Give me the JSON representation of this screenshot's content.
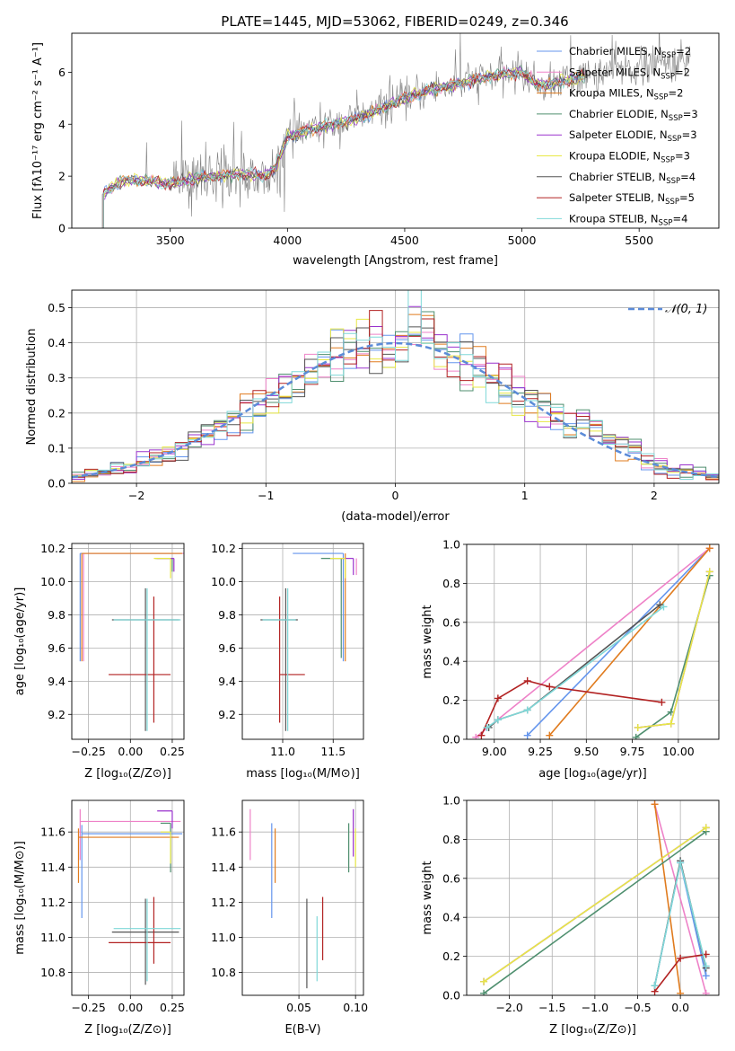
{
  "figure_title": "PLATE=1445, MJD=53062, FIBERID=0249, z=0.346",
  "colors": {
    "chabrier_miles": "#6495ed",
    "salpeter_miles": "#ee82c8",
    "kroupa_miles": "#e07b1e",
    "chabrier_elodie": "#4f8f6f",
    "salpeter_elodie": "#9a32cd",
    "kroupa_elodie": "#e8e845",
    "chabrier_stelib": "#555555",
    "salpeter_stelib": "#b22222",
    "kroupa_stelib": "#7fd8d8",
    "gaussian": "#5b8bd8",
    "data": "#808080"
  },
  "legend_spectrum": [
    {
      "key": "chabrier_miles",
      "label": "Chabrier MILES, N",
      "sub": "SSP",
      "tail": "=2"
    },
    {
      "key": "salpeter_miles",
      "label": "Salpeter MILES, N",
      "sub": "SSP",
      "tail": "=2"
    },
    {
      "key": "kroupa_miles",
      "label": "Kroupa MILES, N",
      "sub": "SSP",
      "tail": "=2"
    },
    {
      "key": "chabrier_elodie",
      "label": "Chabrier ELODIE, N",
      "sub": "SSP",
      "tail": "=3"
    },
    {
      "key": "salpeter_elodie",
      "label": "Salpeter ELODIE, N",
      "sub": "SSP",
      "tail": "=3"
    },
    {
      "key": "kroupa_elodie",
      "label": "Kroupa ELODIE, N",
      "sub": "SSP",
      "tail": "=3"
    },
    {
      "key": "chabrier_stelib",
      "label": "Chabrier STELIB, N",
      "sub": "SSP",
      "tail": "=4"
    },
    {
      "key": "salpeter_stelib",
      "label": "Salpeter STELIB, N",
      "sub": "SSP",
      "tail": "=5"
    },
    {
      "key": "kroupa_stelib",
      "label": "Kroupa STELIB, N",
      "sub": "SSP",
      "tail": "=4"
    }
  ],
  "chart_data": [
    {
      "id": "spectrum",
      "type": "line",
      "xlabel": "wavelength [Angstrom, rest frame]",
      "ylabel": "Flux [fλ10⁻¹⁷ erg cm⁻² s⁻¹ A⁻¹]",
      "xlim": [
        3080,
        5840
      ],
      "ylim": [
        0,
        7.5
      ],
      "xticks": [
        3500,
        4000,
        4500,
        5000,
        5500
      ],
      "yticks": [
        0,
        2,
        4,
        6
      ],
      "continuum": [
        [
          3210,
          1.3
        ],
        [
          3300,
          1.85
        ],
        [
          3400,
          1.8
        ],
        [
          3500,
          1.7
        ],
        [
          3600,
          1.9
        ],
        [
          3700,
          2.0
        ],
        [
          3800,
          2.1
        ],
        [
          3900,
          2.0
        ],
        [
          3950,
          2.3
        ],
        [
          4000,
          3.5
        ],
        [
          4100,
          3.8
        ],
        [
          4200,
          4.0
        ],
        [
          4300,
          4.2
        ],
        [
          4400,
          4.6
        ],
        [
          4500,
          5.0
        ],
        [
          4600,
          5.3
        ],
        [
          4700,
          5.5
        ],
        [
          4800,
          5.7
        ],
        [
          4900,
          5.9
        ],
        [
          5000,
          6.0
        ],
        [
          5050,
          5.6
        ],
        [
          5100,
          5.5
        ],
        [
          5200,
          5.7
        ],
        [
          5300,
          5.9
        ],
        [
          5400,
          6.1
        ],
        [
          5500,
          6.2
        ],
        [
          5600,
          6.3
        ],
        [
          5700,
          6.4
        ]
      ],
      "model_end": 5270
    },
    {
      "id": "residuals",
      "type": "histogram",
      "xlabel": "(data-model)/error",
      "ylabel": "Normed distribution",
      "xlim": [
        -2.5,
        2.5
      ],
      "ylim": [
        0,
        0.55
      ],
      "xticks": [
        -2,
        -1,
        0,
        1,
        2
      ],
      "yticks": [
        0,
        0.1,
        0.2,
        0.3,
        0.4,
        0.5
      ],
      "bin_width": 0.1,
      "legend": "𝒩(0, 1)"
    },
    {
      "id": "age_vs_z",
      "type": "errorbar",
      "xlabel": "Z [log₁₀(Z/Z⊙)]",
      "ylabel": "age  [log₁₀(age/yr)]",
      "xlim": [
        -0.35,
        0.32
      ],
      "ylim": [
        9.05,
        10.23
      ],
      "xticks": [
        -0.25,
        0.0,
        0.25
      ],
      "yticks": [
        9.2,
        9.4,
        9.6,
        9.8,
        10.0,
        10.2
      ],
      "points": [
        {
          "c": "chabrier_miles",
          "x": -0.3,
          "y": 10.17,
          "xerr": [
            0.0,
            0.6
          ],
          "yerr": [
            0.65,
            0.0
          ]
        },
        {
          "c": "salpeter_miles",
          "x": -0.28,
          "y": 10.17,
          "xerr": [
            0.0,
            0.6
          ],
          "yerr": [
            0.65,
            0.0
          ]
        },
        {
          "c": "kroupa_miles",
          "x": -0.29,
          "y": 10.17,
          "xerr": [
            0.0,
            0.6
          ],
          "yerr": [
            0.65,
            0.0
          ]
        },
        {
          "c": "chabrier_elodie",
          "x": 0.25,
          "y": 10.14,
          "xerr": [
            0.1,
            0.0
          ],
          "yerr": [
            0.08,
            0.0
          ]
        },
        {
          "c": "salpeter_elodie",
          "x": 0.26,
          "y": 10.14,
          "xerr": [
            0.1,
            0.0
          ],
          "yerr": [
            0.08,
            0.0
          ]
        },
        {
          "c": "kroupa_elodie",
          "x": 0.24,
          "y": 10.14,
          "xerr": [
            0.1,
            0.0
          ],
          "yerr": [
            0.12,
            0.0
          ]
        },
        {
          "c": "chabrier_stelib",
          "x": 0.09,
          "y": 9.77,
          "xerr": [
            0.2,
            0.2
          ],
          "yerr": [
            0.67,
            0.19
          ]
        },
        {
          "c": "salpeter_stelib",
          "x": 0.14,
          "y": 9.44,
          "xerr": [
            0.27,
            0.1
          ],
          "yerr": [
            0.29,
            0.47
          ]
        },
        {
          "c": "kroupa_stelib",
          "x": 0.1,
          "y": 9.77,
          "xerr": [
            0.2,
            0.2
          ],
          "yerr": [
            0.67,
            0.19
          ]
        }
      ]
    },
    {
      "id": "age_vs_mass",
      "type": "errorbar",
      "xlabel": "mass [log₁₀(M/M⊙)]",
      "ylabel": "",
      "xlim": [
        10.6,
        11.8
      ],
      "ylim": [
        9.05,
        10.23
      ],
      "xticks": [
        11.0,
        11.5
      ],
      "yticks": [
        9.2,
        9.4,
        9.6,
        9.8,
        10.0,
        10.2
      ],
      "points": [
        {
          "c": "chabrier_miles",
          "x": 11.6,
          "y": 10.17,
          "xerr": [
            0.5,
            0.0
          ],
          "yerr": [
            0.65,
            0.0
          ]
        },
        {
          "c": "salpeter_miles",
          "x": 11.73,
          "y": 10.14,
          "xerr": [
            0.0,
            0.0
          ],
          "yerr": [
            0.1,
            0.0
          ]
        },
        {
          "c": "kroupa_miles",
          "x": 11.62,
          "y": 10.17,
          "xerr": [
            0.0,
            0.0
          ],
          "yerr": [
            0.65,
            0.0
          ]
        },
        {
          "c": "chabrier_elodie",
          "x": 11.58,
          "y": 10.14,
          "xerr": [
            0.2,
            0.0
          ],
          "yerr": [
            0.6,
            0.0
          ]
        },
        {
          "c": "salpeter_elodie",
          "x": 11.7,
          "y": 10.14,
          "xerr": [
            0.12,
            0.0
          ],
          "yerr": [
            0.1,
            0.0
          ]
        },
        {
          "c": "kroupa_elodie",
          "x": 11.62,
          "y": 10.14,
          "xerr": [
            0.15,
            0.0
          ],
          "yerr": [
            0.12,
            0.0
          ]
        },
        {
          "c": "chabrier_stelib",
          "x": 11.03,
          "y": 9.77,
          "xerr": [
            0.25,
            0.12
          ],
          "yerr": [
            0.67,
            0.19
          ]
        },
        {
          "c": "salpeter_stelib",
          "x": 10.97,
          "y": 9.44,
          "xerr": [
            0.0,
            0.25
          ],
          "yerr": [
            0.29,
            0.47
          ]
        },
        {
          "c": "kroupa_stelib",
          "x": 11.05,
          "y": 9.77,
          "xerr": [
            0.25,
            0.08
          ],
          "yerr": [
            0.67,
            0.19
          ]
        }
      ]
    },
    {
      "id": "weight_vs_age",
      "type": "line",
      "xlabel": "age  [log₁₀(age/yr)]",
      "ylabel": "mass weight",
      "xlim": [
        8.85,
        10.22
      ],
      "ylim": [
        0,
        1
      ],
      "xticks": [
        9.0,
        9.25,
        9.5,
        9.75,
        10.0
      ],
      "yticks": [
        0,
        0.2,
        0.4,
        0.6,
        0.8,
        1.0
      ],
      "series": [
        {
          "c": "chabrier_miles",
          "pts": [
            [
              9.18,
              0.02
            ],
            [
              10.17,
              0.98
            ]
          ]
        },
        {
          "c": "salpeter_miles",
          "pts": [
            [
              8.9,
              0.01
            ],
            [
              10.17,
              0.98
            ]
          ]
        },
        {
          "c": "kroupa_miles",
          "pts": [
            [
              9.3,
              0.02
            ],
            [
              10.17,
              0.98
            ]
          ]
        },
        {
          "c": "chabrier_elodie",
          "pts": [
            [
              9.77,
              0.01
            ],
            [
              9.96,
              0.14
            ],
            [
              10.17,
              0.84
            ]
          ]
        },
        {
          "c": "salpeter_elodie",
          "pts": [
            [
              9.78,
              0.06
            ],
            [
              9.96,
              0.08
            ],
            [
              10.17,
              0.86
            ]
          ]
        },
        {
          "c": "kroupa_elodie",
          "pts": [
            [
              9.78,
              0.06
            ],
            [
              9.96,
              0.08
            ],
            [
              10.17,
              0.86
            ]
          ]
        },
        {
          "c": "chabrier_stelib",
          "pts": [
            [
              8.97,
              0.06
            ],
            [
              9.02,
              0.1
            ],
            [
              9.18,
              0.15
            ],
            [
              9.9,
              0.69
            ]
          ]
        },
        {
          "c": "salpeter_stelib",
          "pts": [
            [
              8.93,
              0.02
            ],
            [
              9.02,
              0.21
            ],
            [
              9.18,
              0.3
            ],
            [
              9.3,
              0.27
            ],
            [
              9.91,
              0.19
            ]
          ]
        },
        {
          "c": "kroupa_stelib",
          "pts": [
            [
              8.96,
              0.06
            ],
            [
              9.02,
              0.1
            ],
            [
              9.18,
              0.15
            ],
            [
              9.92,
              0.68
            ]
          ]
        }
      ]
    },
    {
      "id": "mass_vs_z",
      "type": "errorbar",
      "xlabel": "Z [log₁₀(Z/Z⊙)]",
      "ylabel": "mass [log₁₀(M/M⊙)]",
      "xlim": [
        -0.35,
        0.32
      ],
      "ylim": [
        10.67,
        11.78
      ],
      "xticks": [
        -0.25,
        0.0,
        0.25
      ],
      "yticks": [
        10.8,
        11.0,
        11.2,
        11.4,
        11.6
      ],
      "points": [
        {
          "c": "chabrier_miles",
          "x": -0.29,
          "y": 11.59,
          "xerr": [
            0.0,
            0.6
          ],
          "yerr": [
            0.48,
            0.05
          ]
        },
        {
          "c": "salpeter_miles",
          "x": -0.3,
          "y": 11.66,
          "xerr": [
            0.0,
            0.6
          ],
          "yerr": [
            0.22,
            0.07
          ]
        },
        {
          "c": "kroupa_miles",
          "x": -0.31,
          "y": 11.57,
          "xerr": [
            0.0,
            0.6
          ],
          "yerr": [
            0.26,
            0.05
          ]
        },
        {
          "c": "chabrier_elodie",
          "x": 0.24,
          "y": 11.65,
          "xerr": [
            0.06,
            0.0
          ],
          "yerr": [
            0.28,
            0.0
          ]
        },
        {
          "c": "salpeter_elodie",
          "x": 0.25,
          "y": 11.72,
          "xerr": [
            0.09,
            0.0
          ],
          "yerr": [
            0.1,
            0.0
          ]
        },
        {
          "c": "kroupa_elodie",
          "x": 0.24,
          "y": 11.6,
          "xerr": [
            0.06,
            0.0
          ],
          "yerr": [
            0.18,
            0.0
          ]
        },
        {
          "c": "chabrier_stelib",
          "x": 0.09,
          "y": 11.03,
          "xerr": [
            0.2,
            0.2
          ],
          "yerr": [
            0.3,
            0.19
          ]
        },
        {
          "c": "salpeter_stelib",
          "x": 0.14,
          "y": 10.97,
          "xerr": [
            0.27,
            0.1
          ],
          "yerr": [
            0.12,
            0.26
          ]
        },
        {
          "c": "kroupa_stelib",
          "x": 0.1,
          "y": 11.05,
          "xerr": [
            0.2,
            0.2
          ],
          "yerr": [
            0.3,
            0.17
          ]
        }
      ]
    },
    {
      "id": "mass_vs_ebv",
      "type": "errorbar",
      "xlabel": "E(B-V)",
      "ylabel": "",
      "xlim": [
        0.0,
        0.107
      ],
      "ylim": [
        10.67,
        11.78
      ],
      "xticks": [
        0.05,
        0.1
      ],
      "yticks": [
        10.8,
        11.0,
        11.2,
        11.4,
        11.6
      ],
      "points": [
        {
          "c": "chabrier_miles",
          "x": 0.026,
          "y": 11.5,
          "xerr": [
            0,
            0
          ],
          "yerr": [
            0.39,
            0.15
          ]
        },
        {
          "c": "salpeter_miles",
          "x": 0.007,
          "y": 11.6,
          "xerr": [
            0,
            0
          ],
          "yerr": [
            0.16,
            0.13
          ]
        },
        {
          "c": "kroupa_miles",
          "x": 0.029,
          "y": 11.5,
          "xerr": [
            0,
            0
          ],
          "yerr": [
            0.19,
            0.12
          ]
        },
        {
          "c": "chabrier_elodie",
          "x": 0.094,
          "y": 11.55,
          "xerr": [
            0,
            0
          ],
          "yerr": [
            0.18,
            0.1
          ]
        },
        {
          "c": "salpeter_elodie",
          "x": 0.098,
          "y": 11.6,
          "xerr": [
            0,
            0
          ],
          "yerr": [
            0.14,
            0.13
          ]
        },
        {
          "c": "kroupa_elodie",
          "x": 0.1,
          "y": 11.5,
          "xerr": [
            0,
            0
          ],
          "yerr": [
            0.1,
            0.12
          ]
        },
        {
          "c": "chabrier_stelib",
          "x": 0.057,
          "y": 11.0,
          "xerr": [
            0,
            0
          ],
          "yerr": [
            0.29,
            0.22
          ]
        },
        {
          "c": "salpeter_stelib",
          "x": 0.071,
          "y": 11.0,
          "xerr": [
            0,
            0
          ],
          "yerr": [
            0.13,
            0.23
          ]
        },
        {
          "c": "kroupa_stelib",
          "x": 0.066,
          "y": 11.0,
          "xerr": [
            0,
            0
          ],
          "yerr": [
            0.25,
            0.12
          ]
        }
      ]
    },
    {
      "id": "weight_vs_z",
      "type": "line",
      "xlabel": "Z [log₁₀(Z/Z⊙)]",
      "ylabel": "mass weight",
      "xlim": [
        -2.5,
        0.45
      ],
      "ylim": [
        0,
        1
      ],
      "xticks": [
        -2.0,
        -1.5,
        -1.0,
        -0.5,
        0.0
      ],
      "yticks": [
        0,
        0.2,
        0.4,
        0.6,
        0.8,
        1.0
      ],
      "series": [
        {
          "c": "chabrier_miles",
          "pts": [
            [
              -0.3,
              0.05
            ],
            [
              0.0,
              0.68
            ],
            [
              0.3,
              0.1
            ]
          ]
        },
        {
          "c": "salpeter_miles",
          "pts": [
            [
              -0.3,
              0.98
            ],
            [
              0.3,
              0.01
            ]
          ]
        },
        {
          "c": "kroupa_miles",
          "pts": [
            [
              -0.3,
              0.98
            ],
            [
              0.0,
              0.01
            ]
          ]
        },
        {
          "c": "chabrier_elodie",
          "pts": [
            [
              -2.3,
              0.01
            ],
            [
              0.3,
              0.84
            ]
          ]
        },
        {
          "c": "salpeter_elodie",
          "pts": [
            [
              -2.3,
              0.07
            ],
            [
              0.3,
              0.86
            ]
          ]
        },
        {
          "c": "kroupa_elodie",
          "pts": [
            [
              -2.3,
              0.07
            ],
            [
              0.3,
              0.86
            ]
          ]
        },
        {
          "c": "chabrier_stelib",
          "pts": [
            [
              -0.3,
              0.05
            ],
            [
              0.0,
              0.69
            ],
            [
              0.3,
              0.14
            ]
          ]
        },
        {
          "c": "salpeter_stelib",
          "pts": [
            [
              -0.3,
              0.02
            ],
            [
              0.0,
              0.19
            ],
            [
              0.3,
              0.21
            ]
          ]
        },
        {
          "c": "kroupa_stelib",
          "pts": [
            [
              -0.3,
              0.05
            ],
            [
              0.0,
              0.68
            ],
            [
              0.3,
              0.15
            ]
          ]
        }
      ]
    }
  ]
}
